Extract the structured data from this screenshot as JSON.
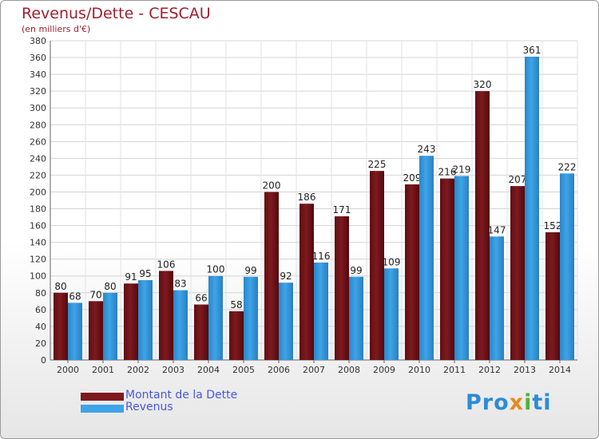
{
  "header": {
    "title": "Revenus/Dette - CESCAU",
    "subtitle": "(en milliers d'€)"
  },
  "colors": {
    "dette": "#7d1a1f",
    "revenus": "#3ea4e8",
    "title": "#a01f2e",
    "legend_text": "#4a56e0"
  },
  "legend": {
    "dette_label": "Montant de la Dette",
    "revenus_label": "Revenus"
  },
  "logo": {
    "text": "Proxiti"
  },
  "chart_data": {
    "type": "bar",
    "title": "Revenus/Dette - CESCAU",
    "subtitle": "(en milliers d'€)",
    "xlabel": "",
    "ylabel": "",
    "categories": [
      "2000",
      "2001",
      "2002",
      "2003",
      "2004",
      "2005",
      "2006",
      "2007",
      "2008",
      "2009",
      "2010",
      "2011",
      "2012",
      "2013",
      "2014"
    ],
    "series": [
      {
        "name": "Montant de la Dette",
        "values": [
          80,
          70,
          91,
          106,
          66,
          58,
          200,
          186,
          171,
          225,
          209,
          216,
          320,
          207,
          152
        ]
      },
      {
        "name": "Revenus",
        "values": [
          68,
          80,
          95,
          83,
          100,
          99,
          92,
          116,
          99,
          109,
          243,
          219,
          147,
          361,
          222
        ]
      }
    ],
    "ylim": [
      0,
      380
    ],
    "ytick_step": 20,
    "grid": true,
    "legend_position": "bottom-left"
  }
}
